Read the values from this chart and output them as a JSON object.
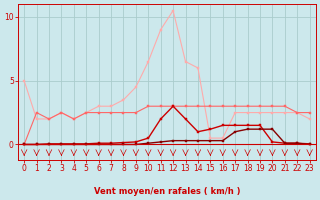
{
  "bg_color": "#cce8ec",
  "grid_color": "#aacccc",
  "line1_color": "#ffaaaa",
  "line2_color": "#ff6666",
  "line3_color": "#cc0000",
  "line4_color": "#880000",
  "x": [
    0,
    1,
    2,
    3,
    4,
    5,
    6,
    7,
    8,
    9,
    10,
    11,
    12,
    13,
    14,
    15,
    16,
    17,
    18,
    19,
    20,
    21,
    22,
    23
  ],
  "line1_y": [
    5.0,
    2.0,
    2.0,
    2.5,
    2.0,
    2.5,
    3.0,
    3.0,
    3.5,
    4.5,
    6.5,
    9.0,
    10.5,
    6.5,
    6.0,
    0.5,
    0.5,
    2.5,
    2.5,
    2.5,
    2.5,
    2.5,
    2.5,
    2.0
  ],
  "line2_y": [
    0.0,
    2.5,
    2.0,
    2.5,
    2.0,
    2.5,
    2.5,
    2.5,
    2.5,
    2.5,
    3.0,
    3.0,
    3.0,
    3.0,
    3.0,
    3.0,
    3.0,
    3.0,
    3.0,
    3.0,
    3.0,
    3.0,
    2.5,
    2.5
  ],
  "line3_y": [
    0.0,
    0.0,
    0.05,
    0.05,
    0.05,
    0.05,
    0.1,
    0.1,
    0.15,
    0.2,
    0.5,
    2.0,
    3.0,
    2.0,
    1.0,
    1.2,
    1.5,
    1.5,
    1.5,
    1.5,
    0.2,
    0.1,
    0.1,
    0.05
  ],
  "line4_y": [
    0.0,
    0.0,
    0.0,
    0.0,
    0.0,
    0.0,
    0.0,
    0.0,
    0.0,
    0.0,
    0.1,
    0.2,
    0.3,
    0.3,
    0.3,
    0.3,
    0.3,
    1.0,
    1.2,
    1.2,
    1.2,
    0.1,
    0.1,
    0.0
  ],
  "xlabel": "Vent moyen/en rafales ( km/h )",
  "ylim": [
    -1.2,
    11.0
  ],
  "xlim": [
    -0.5,
    23.5
  ],
  "yticks": [
    0,
    5,
    10
  ],
  "xticks": [
    0,
    1,
    2,
    3,
    4,
    5,
    6,
    7,
    8,
    9,
    10,
    11,
    12,
    13,
    14,
    15,
    16,
    17,
    18,
    19,
    20,
    21,
    22,
    23
  ],
  "arrow_color": "#cc0000",
  "spine_color": "#cc0000",
  "tick_color": "#cc0000",
  "xlabel_color": "#cc0000"
}
